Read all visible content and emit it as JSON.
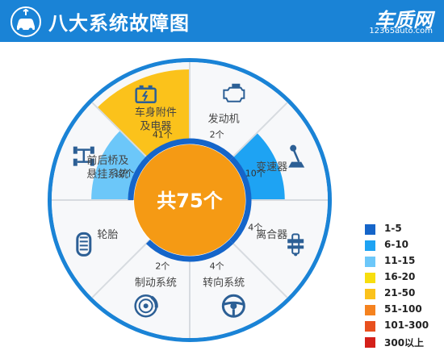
{
  "header": {
    "title": "八大系统故障图",
    "brand_name": "车质网",
    "brand_url": "12365auto.com",
    "icon": "car-wrench-icon"
  },
  "chart_data": {
    "type": "pie",
    "center_label": "共75个",
    "segments": [
      {
        "name": "发动机",
        "count_label": "2个",
        "value": 2,
        "color": "#ffffff",
        "icon": "engine-icon"
      },
      {
        "name": "变速器",
        "count_label": "10个",
        "value": 10,
        "color": "#1ea3f3",
        "icon": "gear-shifter-icon"
      },
      {
        "name": "离合器",
        "count_label": "4个",
        "value": 4,
        "color": "#ffffff",
        "icon": "clutch-icon"
      },
      {
        "name": "转向系统",
        "count_label": "4个",
        "value": 4,
        "color": "#ffffff",
        "icon": "steering-wheel-icon"
      },
      {
        "name": "制动系统",
        "count_label": "2个",
        "value": 2,
        "color": "#ffffff",
        "icon": "brake-disc-icon"
      },
      {
        "name": "轮胎",
        "count_label": "",
        "value": 0,
        "color": "#ffffff",
        "icon": "tire-icon"
      },
      {
        "name": "前后桥及悬挂系统",
        "count_label": "12个",
        "value": 12,
        "color": "#6cc7f9",
        "icon": "axle-suspension-icon"
      },
      {
        "name": "车身附件及电器",
        "count_label": "41个",
        "value": 41,
        "color": "#fbc21b",
        "icon": "battery-icon"
      }
    ],
    "legend": [
      {
        "label": "1-5",
        "color": "#1565c9"
      },
      {
        "label": "6-10",
        "color": "#1ea3f3"
      },
      {
        "label": "11-15",
        "color": "#6cc7f9"
      },
      {
        "label": "16-20",
        "color": "#f7de0e"
      },
      {
        "label": "21-50",
        "color": "#fbc21b"
      },
      {
        "label": "51-100",
        "color": "#f5821f"
      },
      {
        "label": "101-300",
        "color": "#e8501e"
      },
      {
        "label": "300以上",
        "color": "#d42019"
      }
    ],
    "colors": {
      "frame": "#1a83d6",
      "ring": "#1565c9",
      "center": "#f59a14",
      "center_text": "#ffffff",
      "divider": "#d7dbe0",
      "label": "#444444",
      "icon": "#2c5f95"
    }
  }
}
